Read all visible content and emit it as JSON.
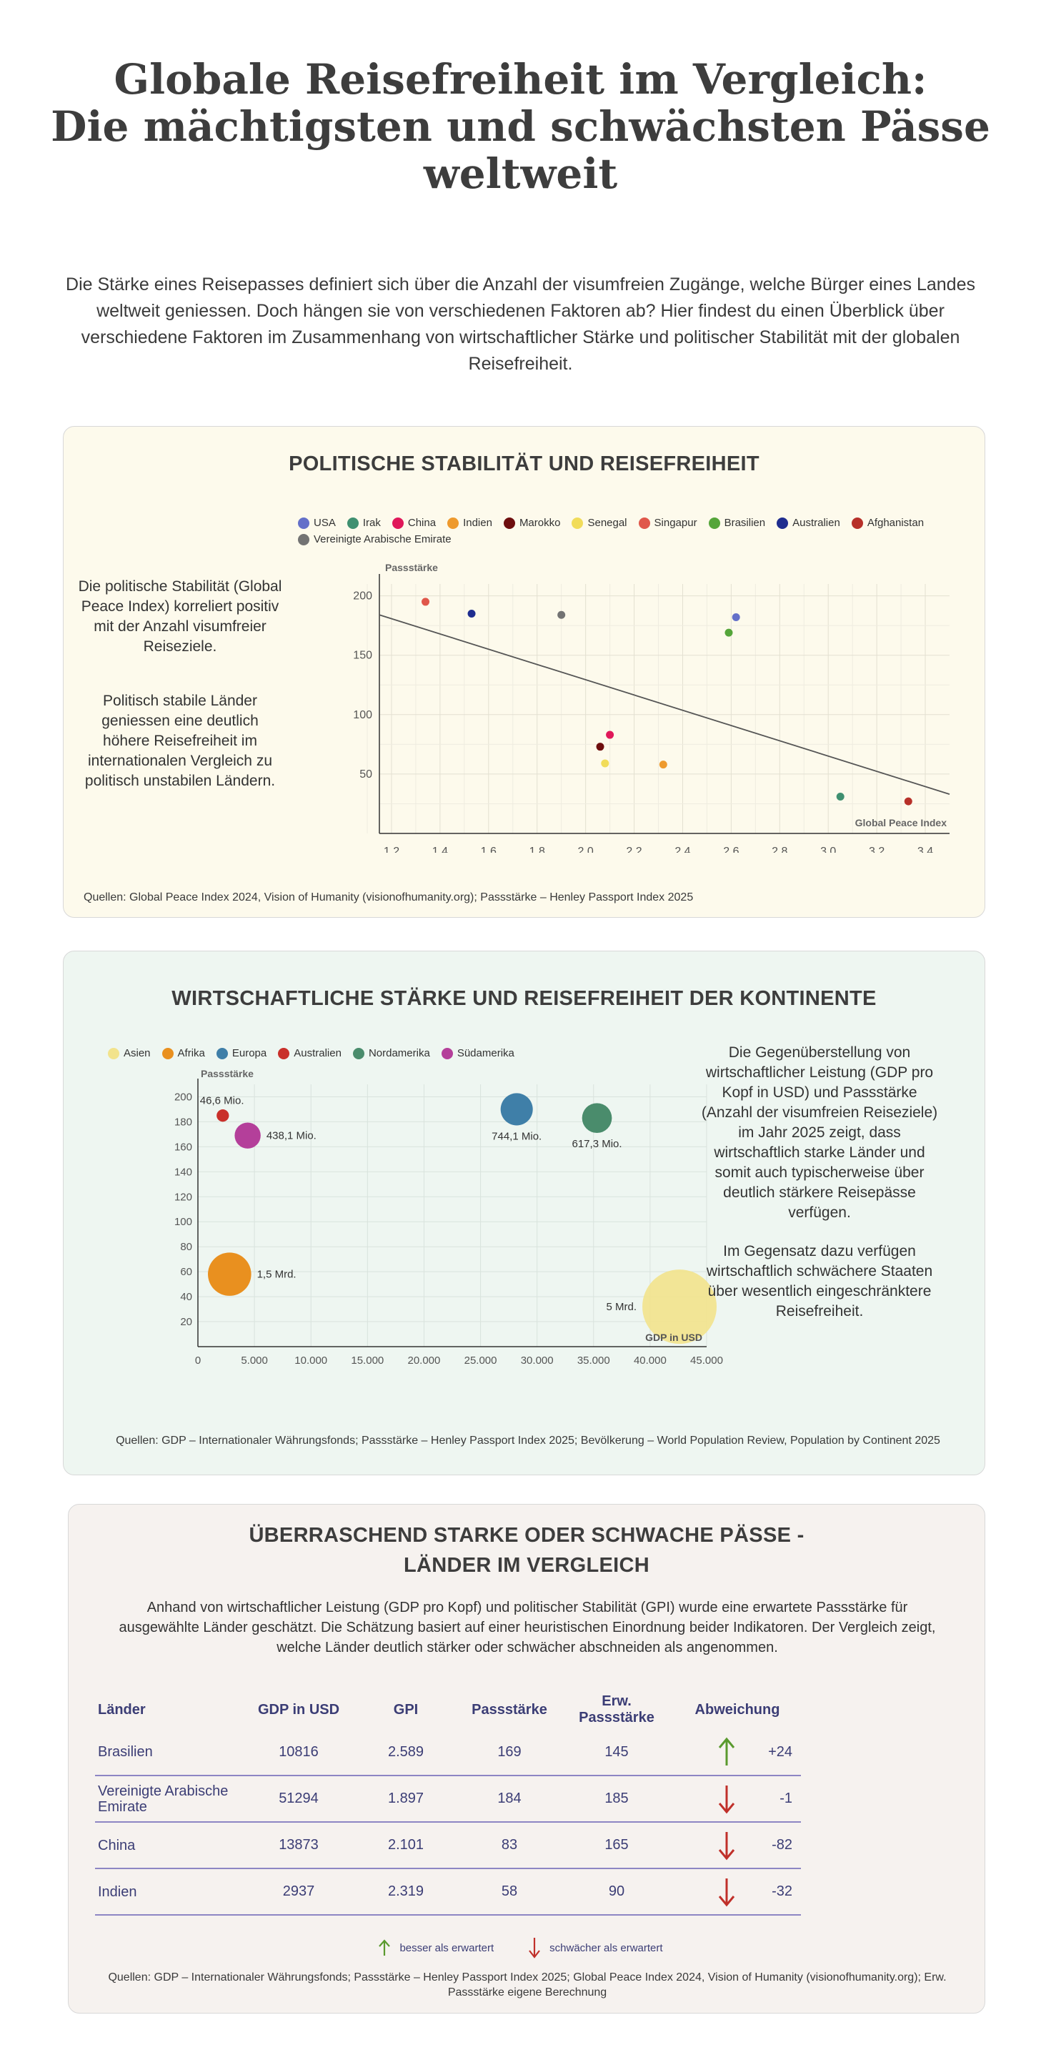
{
  "page": {
    "title_line1": "Globale Reisefreiheit im Vergleich:",
    "title_line2": "Die mächtigsten und schwächsten Pässe",
    "title_line3": "weltweit",
    "intro": "Die Stärke eines Reisepasses definiert sich über die Anzahl der visumfreien Zugänge, welche Bürger eines Landes weltweit geniessen. Doch hängen sie von verschiedenen Faktoren ab? Hier findest du einen Überblick über verschiedene Faktoren im Zusammenhang von wirtschaftlicher Stärke und politischer Stabilität mit der globalen Reisefreiheit."
  },
  "section1": {
    "title": "POLITISCHE STABILITÄT UND REISEFREIHEIT",
    "text1": "Die politische Stabilität (Global Peace Index) korreliert positiv mit der Anzahl visumfreier Reiseziele.",
    "text2": "Politisch stabile Länder geniessen eine deutlich höhere Reisefreiheit im internationalen Vergleich zu politisch unstabilen Ländern.",
    "source": "Quellen: Global Peace Index 2024, Vision of Humanity (visionofhumanity.org); Passstärke – Henley Passport Index 2025"
  },
  "section2": {
    "title": "WIRTSCHAFTLICHE STÄRKE UND REISEFREIHEIT DER KONTINENTE",
    "text1": "Die Gegenüberstellung von wirtschaftlicher Leistung (GDP pro Kopf in USD) und Passstärke (Anzahl der visumfreien Reiseziele) im Jahr 2025 zeigt, dass wirtschaftlich starke Länder und somit auch typischerweise über deutlich stärkere Reisepässe verfügen.",
    "text2": "Im Gegensatz dazu verfügen wirtschaftlich schwächere Staaten über wesentlich eingeschränktere Reisefreiheit.",
    "source": "Quellen: GDP – Internationaler Währungsfonds; Passstärke – Henley Passport Index 2025; Bevölkerung – World Population Review, Population by Continent 2025"
  },
  "section3": {
    "title_line1": "ÜBERRASCHEND STARKE ODER SCHWACHE PÄSSE -",
    "title_line2": "LÄNDER IM VERGLEICH",
    "intro": "Anhand von wirtschaftlicher Leistung (GDP pro Kopf) und politischer Stabilität (GPI) wurde eine erwartete Passstärke für ausgewählte Länder geschätzt. Die Schätzung basiert auf einer heuristischen Einordnung beider Indikatoren. Der Vergleich zeigt, welche Länder deutlich stärker oder schwächer abschneiden als angenommen.",
    "headers": [
      "Länder",
      "GDP in USD",
      "GPI",
      "Passstärke",
      "Erw. Passstärke",
      "Abweichung"
    ],
    "rows": [
      {
        "country": "Brasilien",
        "gdp": "10816",
        "gpi": "2.589",
        "strength": "169",
        "expected": "145",
        "deviation": "+24",
        "direction": "up"
      },
      {
        "country": "Vereinigte Arabische Emirate",
        "gdp": "51294",
        "gpi": "1.897",
        "strength": "184",
        "expected": "185",
        "deviation": "-1",
        "direction": "down"
      },
      {
        "country": "China",
        "gdp": "13873",
        "gpi": "2.101",
        "strength": "83",
        "expected": "165",
        "deviation": "-82",
        "direction": "down"
      },
      {
        "country": "Indien",
        "gdp": "2937",
        "gpi": "2.319",
        "strength": "58",
        "expected": "90",
        "deviation": "-32",
        "direction": "down"
      }
    ],
    "legend_better": "besser als erwartert",
    "legend_worse": "schwächer als erwartert",
    "arrow_up_color": "#5a9a2e",
    "arrow_down_color": "#c0302a",
    "source": "Quellen: GDP – Internationaler Währungsfonds; Passstärke – Henley Passport Index 2025; Global Peace Index 2024, Vision of Humanity (visionofhumanity.org); Erw. Passstärke eigene Berechnung"
  },
  "chart_data": [
    {
      "type": "scatter",
      "xlabel": "Global Peace Index",
      "ylabel": "Passstärke",
      "xlim": [
        1.15,
        3.5
      ],
      "ylim": [
        0,
        210
      ],
      "x_ticks": [
        "1.2",
        "1.4",
        "1.6",
        "1.8",
        "2.0",
        "2.2",
        "2.4",
        "2.6",
        "2.8",
        "3.0",
        "3.2",
        "3.4"
      ],
      "y_ticks": [
        "50",
        "100",
        "150",
        "200"
      ],
      "legend_placement": "top",
      "grid": true,
      "trendline": {
        "x": [
          1.15,
          3.5
        ],
        "y": [
          184,
          33
        ]
      },
      "series": [
        {
          "name": "USA",
          "color": "#6470c9",
          "x": 2.62,
          "y": 182
        },
        {
          "name": "Irak",
          "color": "#3f9070",
          "x": 3.05,
          "y": 31
        },
        {
          "name": "China",
          "color": "#e0185a",
          "x": 2.1,
          "y": 83
        },
        {
          "name": "Indien",
          "color": "#ee9a2e",
          "x": 2.32,
          "y": 58
        },
        {
          "name": "Marokko",
          "color": "#6e0e0e",
          "x": 2.06,
          "y": 73
        },
        {
          "name": "Senegal",
          "color": "#f1dc5a",
          "x": 2.08,
          "y": 59
        },
        {
          "name": "Singapur",
          "color": "#e0574a",
          "x": 1.34,
          "y": 195
        },
        {
          "name": "Brasilien",
          "color": "#55a53a",
          "x": 2.59,
          "y": 169
        },
        {
          "name": "Australien",
          "color": "#1f2d8f",
          "x": 1.53,
          "y": 185
        },
        {
          "name": "Afghanistan",
          "color": "#b73029",
          "x": 3.33,
          "y": 27
        },
        {
          "name": "Vereinigte Arabische Emirate",
          "color": "#737373",
          "x": 1.9,
          "y": 184
        }
      ]
    },
    {
      "type": "bubble",
      "xlabel": "GDP in USD",
      "ylabel": "Passstärke",
      "xlim": [
        0,
        45000
      ],
      "ylim": [
        0,
        210
      ],
      "x_ticks": [
        "0",
        "5.000",
        "10.000",
        "15.000",
        "20.000",
        "25.000",
        "30.000",
        "35.000",
        "40.000",
        "45.000"
      ],
      "y_ticks": [
        "20",
        "40",
        "60",
        "80",
        "100",
        "120",
        "140",
        "160",
        "180",
        "200"
      ],
      "legend_placement": "top",
      "grid": true,
      "series": [
        {
          "name": "Asien",
          "color": "#f2e38c",
          "x": 42600,
          "y": 32,
          "population_label": "5 Mrd.",
          "size": 5000
        },
        {
          "name": "Afrika",
          "color": "#e9901f",
          "x": 2800,
          "y": 58,
          "population_label": "1,5 Mrd.",
          "size": 1500
        },
        {
          "name": "Europa",
          "color": "#3f7fa8",
          "x": 28200,
          "y": 190,
          "population_label": "744,1 Mio.",
          "size": 744
        },
        {
          "name": "Australien",
          "color": "#c9302a",
          "x": 2200,
          "y": 185,
          "population_label": "46,6 Mio.",
          "size": 46.6
        },
        {
          "name": "Nordamerika",
          "color": "#4a8c6c",
          "x": 35300,
          "y": 183,
          "population_label": "617,3 Mio.",
          "size": 617
        },
        {
          "name": "Südamerika",
          "color": "#b43f9a",
          "x": 4400,
          "y": 169,
          "population_label": "438,1 Mio.",
          "size": 438
        }
      ]
    }
  ]
}
